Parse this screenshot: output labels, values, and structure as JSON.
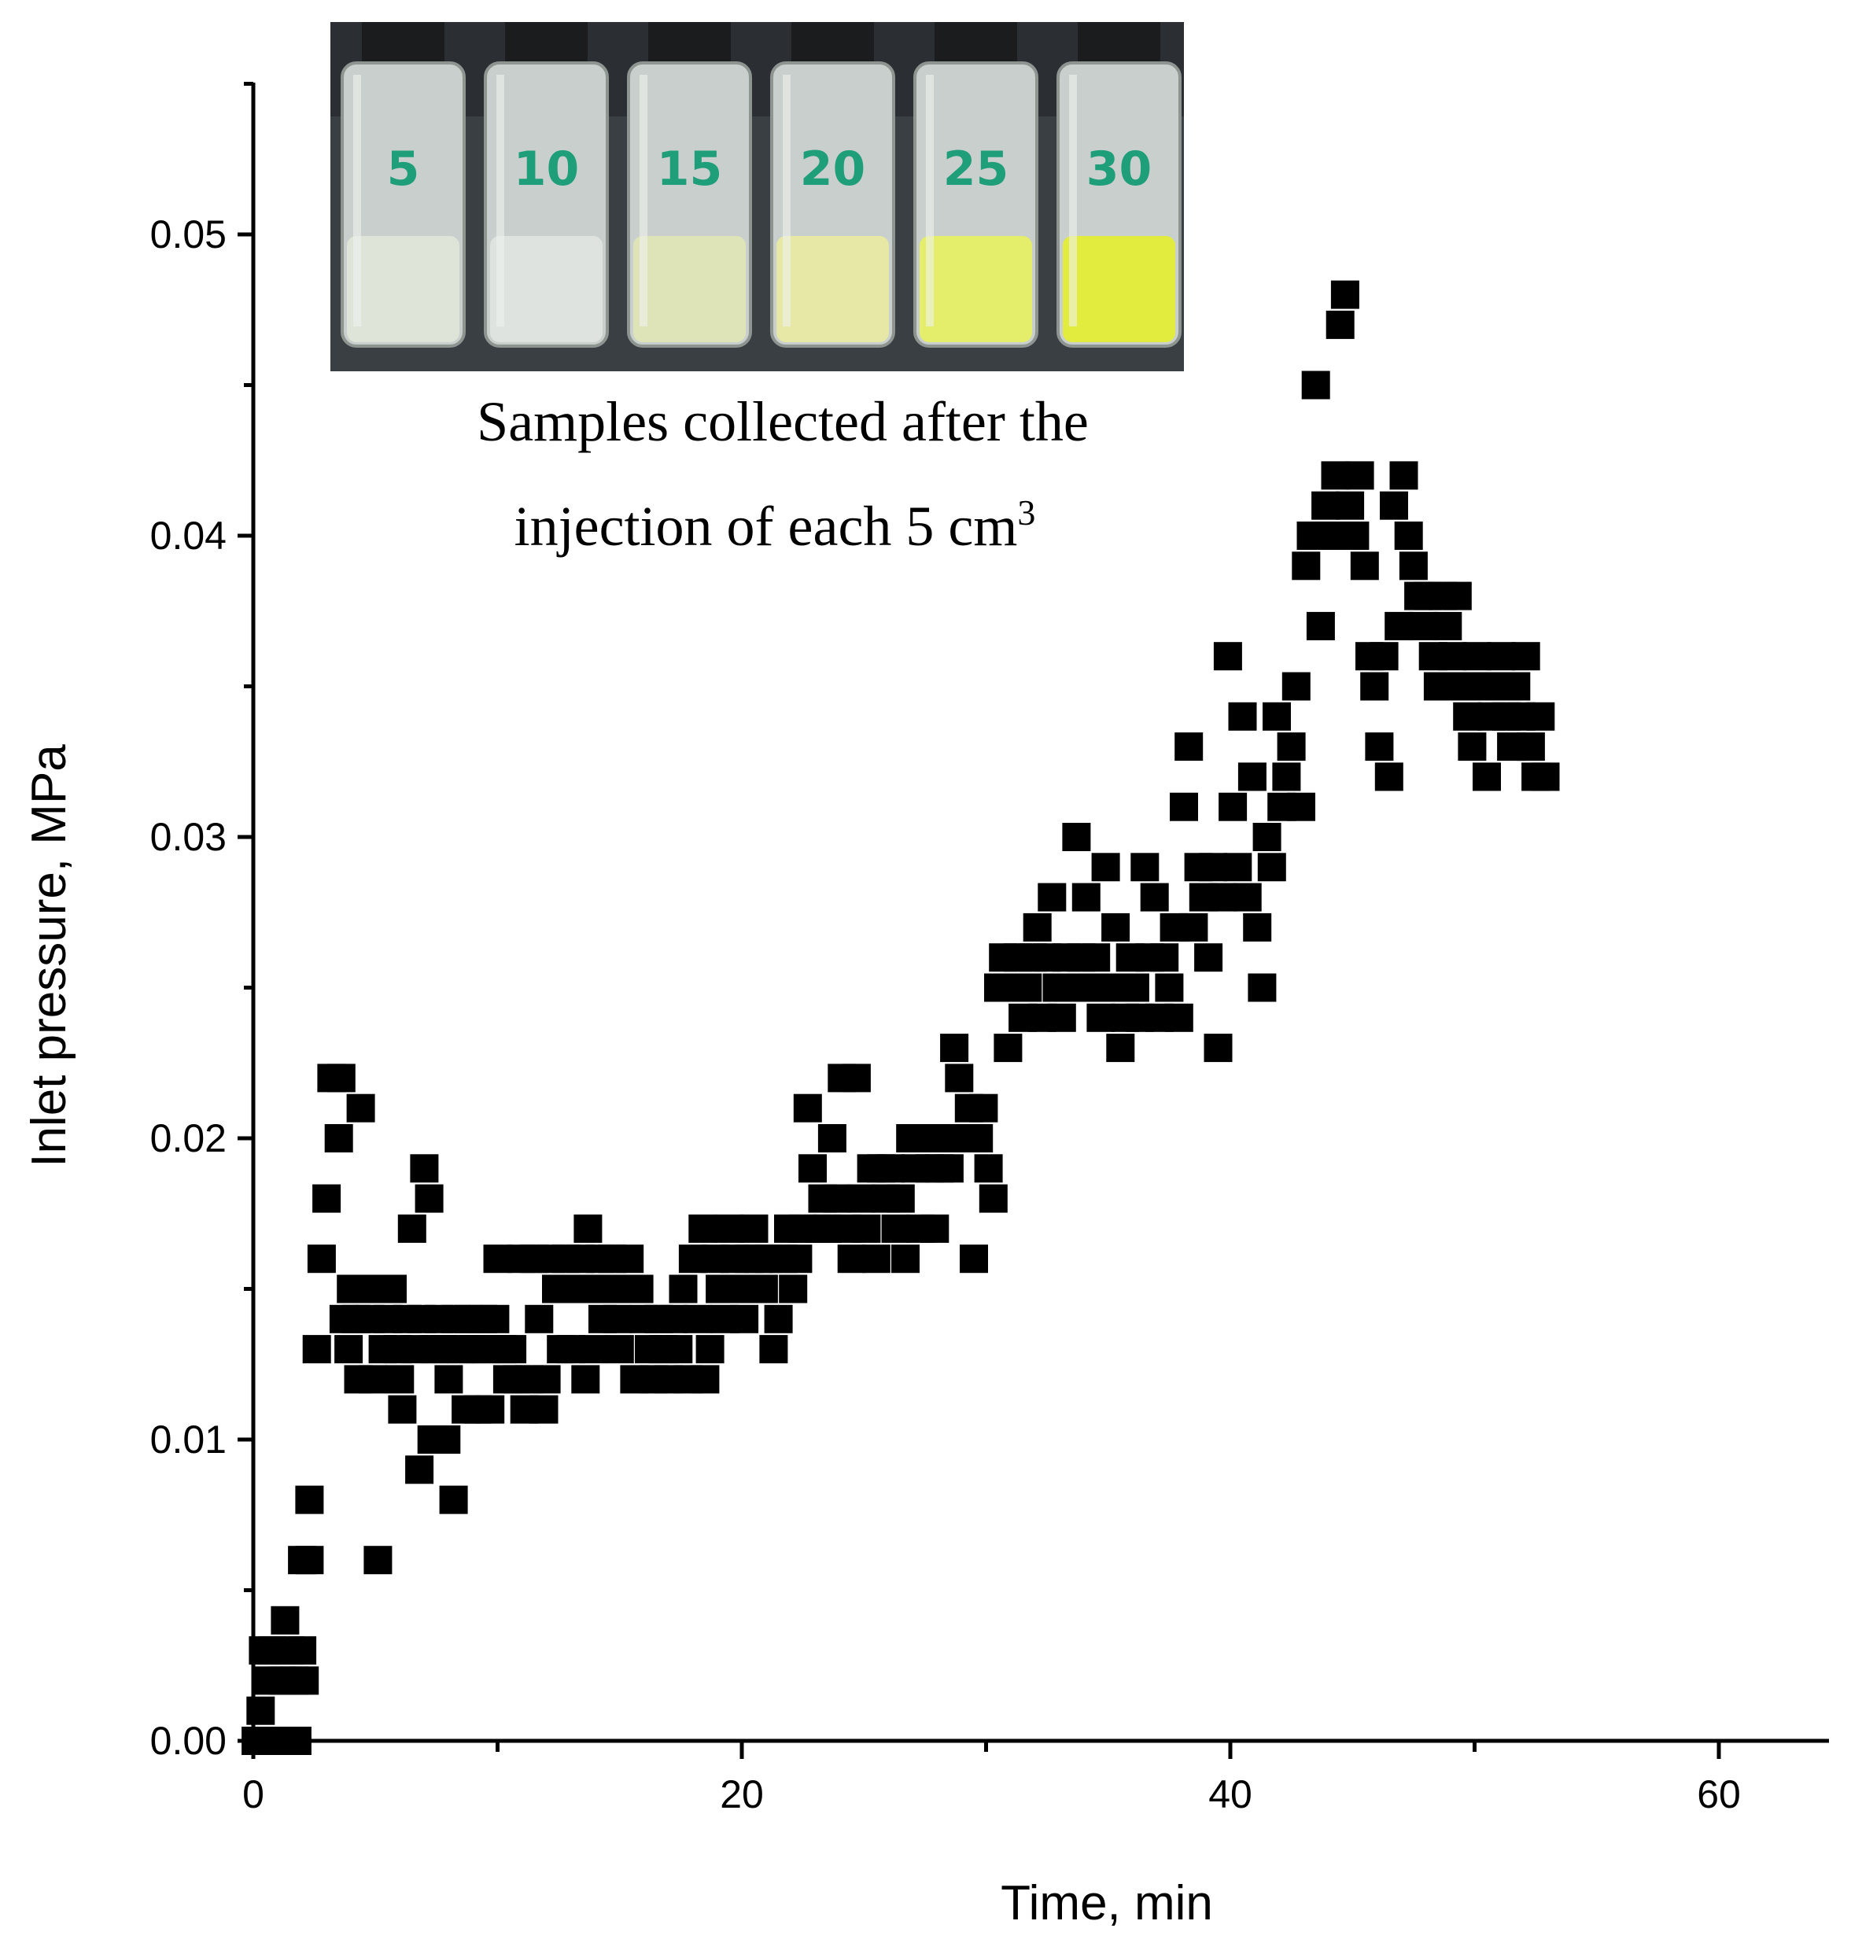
{
  "chart_data": {
    "type": "scatter",
    "title": "",
    "xlabel": "Time, min",
    "ylabel": "Inlet pressure, MPa",
    "xlim": [
      0,
      65
    ],
    "ylim": [
      0,
      0.055
    ],
    "xticks": [
      "0",
      "20",
      "40",
      "60"
    ],
    "yticks": [
      "0.00",
      "0.01",
      "0.02",
      "0.03",
      "0.04",
      "0.05"
    ],
    "marker": "square",
    "marker_color": "#000000",
    "legend": "none",
    "grid": false,
    "inset": {
      "caption_line1": "Samples collected after the",
      "caption_line2": "injection of each 5 cm",
      "caption_sup": "3",
      "vial_labels": [
        "5",
        "10",
        "15",
        "20",
        "25",
        "30"
      ],
      "vial_liquid_colors": [
        "#dfe4d9",
        "#dfe3df",
        "#dfe4b8",
        "#e7e8a6",
        "#e4ee6a",
        "#e2ec3e"
      ]
    },
    "series": [
      {
        "points": [
          [
            0.1,
            0.0
          ],
          [
            0.3,
            0.001
          ],
          [
            0.4,
            0.003
          ],
          [
            0.6,
            0.002
          ],
          [
            0.8,
            0.003
          ],
          [
            1.0,
            0.0
          ],
          [
            1.2,
            0.002
          ],
          [
            1.3,
            0.004
          ],
          [
            1.5,
            0.003
          ],
          [
            1.7,
            0.002
          ],
          [
            1.8,
            0.0
          ],
          [
            2.0,
            0.003
          ],
          [
            2.1,
            0.002
          ],
          [
            2.0,
            0.006
          ],
          [
            2.3,
            0.006
          ],
          [
            2.3,
            0.008
          ],
          [
            2.6,
            0.013
          ],
          [
            2.8,
            0.016
          ],
          [
            3.0,
            0.018
          ],
          [
            3.2,
            0.022
          ],
          [
            3.5,
            0.02
          ],
          [
            3.6,
            0.022
          ],
          [
            3.7,
            0.014
          ],
          [
            3.9,
            0.013
          ],
          [
            4.0,
            0.015
          ],
          [
            4.2,
            0.014
          ],
          [
            4.3,
            0.012
          ],
          [
            4.4,
            0.021
          ],
          [
            4.6,
            0.015
          ],
          [
            4.8,
            0.014
          ],
          [
            4.9,
            0.012
          ],
          [
            5.1,
            0.006
          ],
          [
            5.0,
            0.015
          ],
          [
            5.3,
            0.013
          ],
          [
            5.5,
            0.014
          ],
          [
            5.7,
            0.015
          ],
          [
            5.9,
            0.013
          ],
          [
            6.0,
            0.012
          ],
          [
            6.1,
            0.011
          ],
          [
            6.3,
            0.014
          ],
          [
            6.5,
            0.017
          ],
          [
            6.6,
            0.013
          ],
          [
            6.8,
            0.009
          ],
          [
            6.9,
            0.014
          ],
          [
            7.0,
            0.019
          ],
          [
            7.2,
            0.018
          ],
          [
            7.3,
            0.01
          ],
          [
            7.4,
            0.013
          ],
          [
            7.6,
            0.014
          ],
          [
            7.8,
            0.013
          ],
          [
            7.9,
            0.01
          ],
          [
            8.0,
            0.012
          ],
          [
            8.2,
            0.008
          ],
          [
            8.3,
            0.014
          ],
          [
            8.5,
            0.013
          ],
          [
            8.7,
            0.011
          ],
          [
            8.8,
            0.014
          ],
          [
            9.0,
            0.013
          ],
          [
            9.2,
            0.011
          ],
          [
            9.4,
            0.014
          ],
          [
            9.5,
            0.013
          ],
          [
            9.7,
            0.011
          ],
          [
            9.9,
            0.014
          ],
          [
            10.0,
            0.016
          ],
          [
            10.2,
            0.013
          ],
          [
            10.4,
            0.012
          ],
          [
            10.6,
            0.013
          ],
          [
            10.8,
            0.012
          ],
          [
            11.0,
            0.016
          ],
          [
            11.1,
            0.011
          ],
          [
            11.3,
            0.012
          ],
          [
            11.5,
            0.016
          ],
          [
            11.7,
            0.014
          ],
          [
            11.9,
            0.011
          ],
          [
            12.0,
            0.012
          ],
          [
            12.2,
            0.016
          ],
          [
            12.4,
            0.015
          ],
          [
            12.6,
            0.013
          ],
          [
            12.8,
            0.016
          ],
          [
            13.0,
            0.013
          ],
          [
            13.2,
            0.015
          ],
          [
            13.4,
            0.016
          ],
          [
            13.6,
            0.012
          ],
          [
            13.7,
            0.017
          ],
          [
            13.9,
            0.013
          ],
          [
            14.0,
            0.015
          ],
          [
            14.2,
            0.016
          ],
          [
            14.3,
            0.014
          ],
          [
            14.5,
            0.015
          ],
          [
            14.7,
            0.016
          ],
          [
            14.9,
            0.014
          ],
          [
            15.0,
            0.013
          ],
          [
            15.2,
            0.015
          ],
          [
            15.4,
            0.016
          ],
          [
            15.6,
            0.012
          ],
          [
            15.8,
            0.015
          ],
          [
            16.0,
            0.014
          ],
          [
            16.2,
            0.013
          ],
          [
            16.4,
            0.012
          ],
          [
            16.6,
            0.014
          ],
          [
            16.8,
            0.013
          ],
          [
            17.0,
            0.012
          ],
          [
            17.2,
            0.014
          ],
          [
            17.4,
            0.013
          ],
          [
            17.6,
            0.015
          ],
          [
            17.8,
            0.012
          ],
          [
            18.0,
            0.016
          ],
          [
            18.2,
            0.014
          ],
          [
            18.4,
            0.017
          ],
          [
            18.5,
            0.012
          ],
          [
            18.7,
            0.013
          ],
          [
            18.9,
            0.016
          ],
          [
            19.1,
            0.015
          ],
          [
            19.3,
            0.014
          ],
          [
            19.5,
            0.017
          ],
          [
            19.7,
            0.016
          ],
          [
            19.9,
            0.015
          ],
          [
            20.1,
            0.014
          ],
          [
            20.3,
            0.016
          ],
          [
            20.5,
            0.017
          ],
          [
            20.7,
            0.016
          ],
          [
            20.9,
            0.015
          ],
          [
            21.1,
            0.016
          ],
          [
            21.3,
            0.013
          ],
          [
            21.5,
            0.014
          ],
          [
            21.7,
            0.016
          ],
          [
            21.9,
            0.017
          ],
          [
            22.1,
            0.015
          ],
          [
            22.3,
            0.016
          ],
          [
            22.5,
            0.017
          ],
          [
            22.7,
            0.021
          ],
          [
            22.9,
            0.019
          ],
          [
            23.1,
            0.017
          ],
          [
            23.3,
            0.018
          ],
          [
            23.5,
            0.017
          ],
          [
            23.7,
            0.02
          ],
          [
            23.9,
            0.018
          ],
          [
            24.1,
            0.022
          ],
          [
            24.3,
            0.017
          ],
          [
            24.5,
            0.016
          ],
          [
            24.7,
            0.022
          ],
          [
            24.9,
            0.018
          ],
          [
            25.1,
            0.017
          ],
          [
            25.3,
            0.019
          ],
          [
            25.5,
            0.016
          ],
          [
            25.7,
            0.019
          ],
          [
            25.9,
            0.018
          ],
          [
            26.1,
            0.019
          ],
          [
            26.3,
            0.017
          ],
          [
            26.5,
            0.018
          ],
          [
            26.7,
            0.016
          ],
          [
            26.9,
            0.02
          ],
          [
            27.1,
            0.019
          ],
          [
            27.3,
            0.017
          ],
          [
            27.5,
            0.02
          ],
          [
            27.7,
            0.019
          ],
          [
            27.9,
            0.017
          ],
          [
            28.1,
            0.019
          ],
          [
            28.3,
            0.02
          ],
          [
            28.5,
            0.019
          ],
          [
            28.7,
            0.023
          ],
          [
            28.9,
            0.022
          ],
          [
            29.1,
            0.02
          ],
          [
            29.3,
            0.021
          ],
          [
            29.5,
            0.016
          ],
          [
            29.7,
            0.02
          ],
          [
            29.9,
            0.021
          ],
          [
            30.1,
            0.019
          ],
          [
            30.3,
            0.018
          ],
          [
            30.5,
            0.025
          ],
          [
            30.7,
            0.026
          ],
          [
            30.9,
            0.023
          ],
          [
            31.1,
            0.025
          ],
          [
            31.3,
            0.026
          ],
          [
            31.5,
            0.024
          ],
          [
            31.7,
            0.025
          ],
          [
            31.9,
            0.026
          ],
          [
            32.1,
            0.027
          ],
          [
            32.3,
            0.024
          ],
          [
            32.5,
            0.026
          ],
          [
            32.7,
            0.028
          ],
          [
            32.9,
            0.025
          ],
          [
            33.1,
            0.024
          ],
          [
            33.3,
            0.026
          ],
          [
            33.5,
            0.025
          ],
          [
            33.7,
            0.03
          ],
          [
            33.9,
            0.026
          ],
          [
            34.1,
            0.028
          ],
          [
            34.3,
            0.025
          ],
          [
            34.5,
            0.026
          ],
          [
            34.7,
            0.024
          ],
          [
            34.9,
            0.029
          ],
          [
            35.1,
            0.025
          ],
          [
            35.3,
            0.027
          ],
          [
            35.5,
            0.023
          ],
          [
            35.7,
            0.024
          ],
          [
            35.9,
            0.026
          ],
          [
            36.1,
            0.025
          ],
          [
            36.3,
            0.024
          ],
          [
            36.5,
            0.029
          ],
          [
            36.7,
            0.026
          ],
          [
            36.9,
            0.028
          ],
          [
            37.1,
            0.024
          ],
          [
            37.3,
            0.026
          ],
          [
            37.5,
            0.025
          ],
          [
            37.7,
            0.027
          ],
          [
            37.9,
            0.024
          ],
          [
            38.1,
            0.031
          ],
          [
            38.3,
            0.033
          ],
          [
            38.5,
            0.027
          ],
          [
            38.7,
            0.029
          ],
          [
            38.9,
            0.028
          ],
          [
            39.1,
            0.026
          ],
          [
            39.3,
            0.029
          ],
          [
            39.5,
            0.023
          ],
          [
            39.7,
            0.028
          ],
          [
            39.9,
            0.036
          ],
          [
            40.1,
            0.031
          ],
          [
            40.3,
            0.029
          ],
          [
            40.5,
            0.034
          ],
          [
            40.7,
            0.028
          ],
          [
            40.9,
            0.032
          ],
          [
            41.1,
            0.027
          ],
          [
            41.3,
            0.025
          ],
          [
            41.5,
            0.03
          ],
          [
            41.7,
            0.029
          ],
          [
            41.9,
            0.034
          ],
          [
            42.1,
            0.031
          ],
          [
            42.3,
            0.032
          ],
          [
            42.5,
            0.033
          ],
          [
            42.7,
            0.035
          ],
          [
            42.9,
            0.031
          ],
          [
            43.1,
            0.039
          ],
          [
            43.3,
            0.04
          ],
          [
            43.5,
            0.045
          ],
          [
            43.7,
            0.037
          ],
          [
            43.9,
            0.041
          ],
          [
            44.1,
            0.04
          ],
          [
            44.3,
            0.042
          ],
          [
            44.5,
            0.047
          ],
          [
            44.7,
            0.048
          ],
          [
            44.9,
            0.041
          ],
          [
            45.1,
            0.04
          ],
          [
            45.3,
            0.042
          ],
          [
            45.5,
            0.039
          ],
          [
            45.7,
            0.036
          ],
          [
            45.9,
            0.035
          ],
          [
            46.1,
            0.033
          ],
          [
            46.3,
            0.036
          ],
          [
            46.5,
            0.032
          ],
          [
            46.7,
            0.041
          ],
          [
            46.9,
            0.037
          ],
          [
            47.1,
            0.042
          ],
          [
            47.3,
            0.04
          ],
          [
            47.5,
            0.039
          ],
          [
            47.7,
            0.038
          ],
          [
            47.9,
            0.037
          ],
          [
            48.1,
            0.038
          ],
          [
            48.3,
            0.036
          ],
          [
            48.5,
            0.035
          ],
          [
            48.7,
            0.038
          ],
          [
            48.9,
            0.037
          ],
          [
            49.1,
            0.036
          ],
          [
            49.3,
            0.038
          ],
          [
            49.5,
            0.035
          ],
          [
            49.7,
            0.034
          ],
          [
            49.9,
            0.033
          ],
          [
            50.1,
            0.036
          ],
          [
            50.3,
            0.035
          ],
          [
            50.5,
            0.032
          ],
          [
            50.7,
            0.034
          ],
          [
            50.9,
            0.035
          ],
          [
            51.1,
            0.036
          ],
          [
            51.3,
            0.034
          ],
          [
            51.5,
            0.033
          ],
          [
            51.7,
            0.035
          ],
          [
            51.9,
            0.034
          ],
          [
            52.1,
            0.036
          ],
          [
            52.3,
            0.033
          ],
          [
            52.5,
            0.032
          ],
          [
            52.7,
            0.034
          ],
          [
            52.9,
            0.032
          ]
        ]
      }
    ]
  }
}
